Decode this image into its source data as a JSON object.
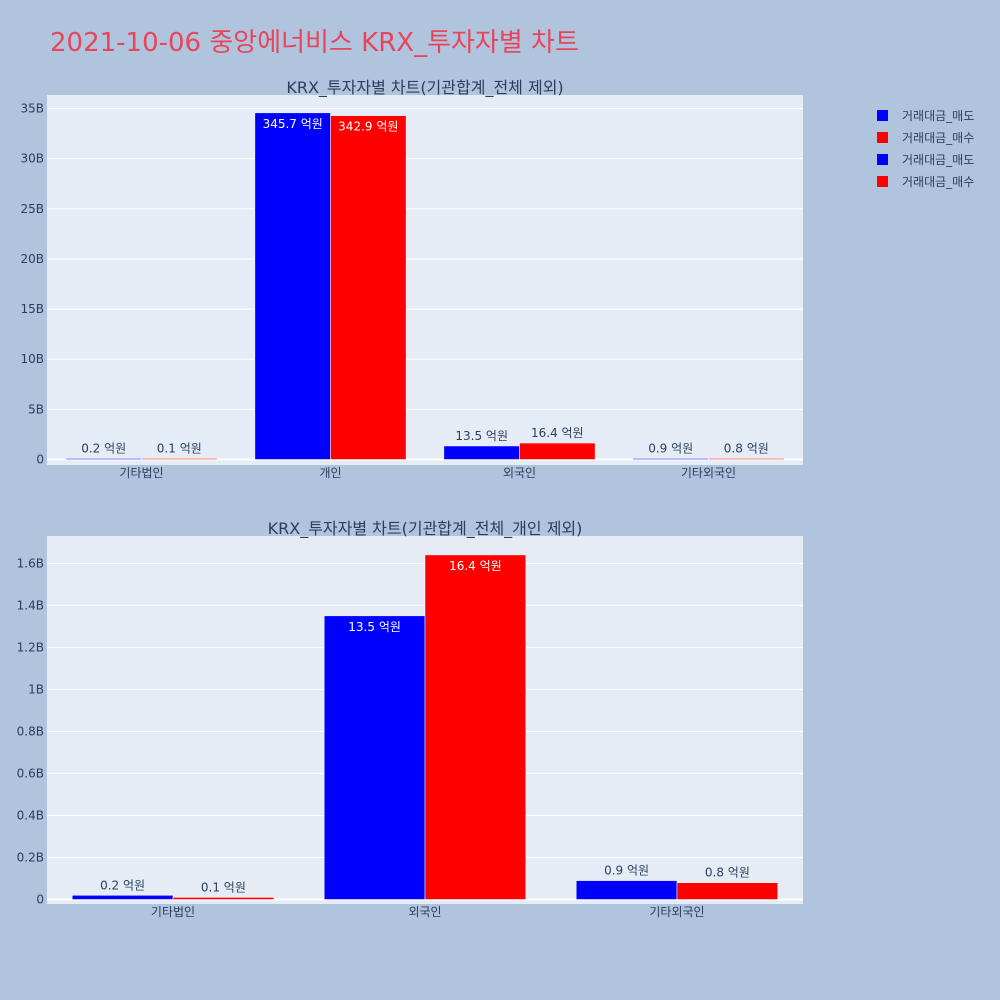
{
  "page_title": "2021-10-06 중앙에너비스 KRX_투자자별 차트",
  "colors": {
    "background": "#b0c4de",
    "plot_bg": "#e5ecf6",
    "title": "#e8455a",
    "sell": "#0000ff",
    "buy": "#ff0000"
  },
  "legend": {
    "placement": "top-right",
    "items": [
      {
        "label": "거래대금_매도",
        "color": "#0000ff"
      },
      {
        "label": "거래대금_매수",
        "color": "#ff0000"
      },
      {
        "label": "거래대금_매도",
        "color": "#0000ff"
      },
      {
        "label": "거래대금_매수",
        "color": "#ff0000"
      }
    ]
  },
  "chart_data": [
    {
      "type": "bar",
      "title": "KRX_투자자별 차트(기관합계_전체 제외)",
      "categories": [
        "기타법인",
        "개인",
        "외국인",
        "기타외국인"
      ],
      "series": [
        {
          "name": "거래대금_매도",
          "color": "#0000ff",
          "values": [
            0.02,
            34.57,
            1.35,
            0.09
          ],
          "labels": [
            "0.2 억원",
            "345.7 억원",
            "13.5 억원",
            "0.9 억원"
          ]
        },
        {
          "name": "거래대금_매수",
          "color": "#ff0000",
          "values": [
            0.01,
            34.29,
            1.64,
            0.08
          ],
          "labels": [
            "0.1 억원",
            "342.9 억원",
            "16.4 억원",
            "0.8 억원"
          ]
        }
      ],
      "yticks": [
        0,
        5,
        10,
        15,
        20,
        25,
        30,
        35
      ],
      "ytick_labels": [
        "0",
        "5B",
        "10B",
        "15B",
        "20B",
        "25B",
        "30B",
        "35B"
      ],
      "ylim": [
        0,
        36.35
      ],
      "grid": true
    },
    {
      "type": "bar",
      "title": "KRX_투자자별 차트(기관합계_전체_개인 제외)",
      "categories": [
        "기타법인",
        "외국인",
        "기타외국인"
      ],
      "series": [
        {
          "name": "거래대금_매도",
          "color": "#0000ff",
          "values": [
            0.02,
            1.35,
            0.09
          ],
          "labels": [
            "0.2 억원",
            "13.5 억원",
            "0.9 억원"
          ]
        },
        {
          "name": "거래대금_매수",
          "color": "#ff0000",
          "values": [
            0.01,
            1.64,
            0.08
          ],
          "labels": [
            "0.1 억원",
            "16.4 억원",
            "0.8 억원"
          ]
        }
      ],
      "yticks": [
        0,
        0.2,
        0.4,
        0.6,
        0.8,
        1.0,
        1.2,
        1.4,
        1.6
      ],
      "ytick_labels": [
        "0",
        "0.2B",
        "0.4B",
        "0.6B",
        "0.8B",
        "1B",
        "1.2B",
        "1.4B",
        "1.6B"
      ],
      "ylim": [
        0,
        1.73
      ],
      "grid": true
    }
  ]
}
